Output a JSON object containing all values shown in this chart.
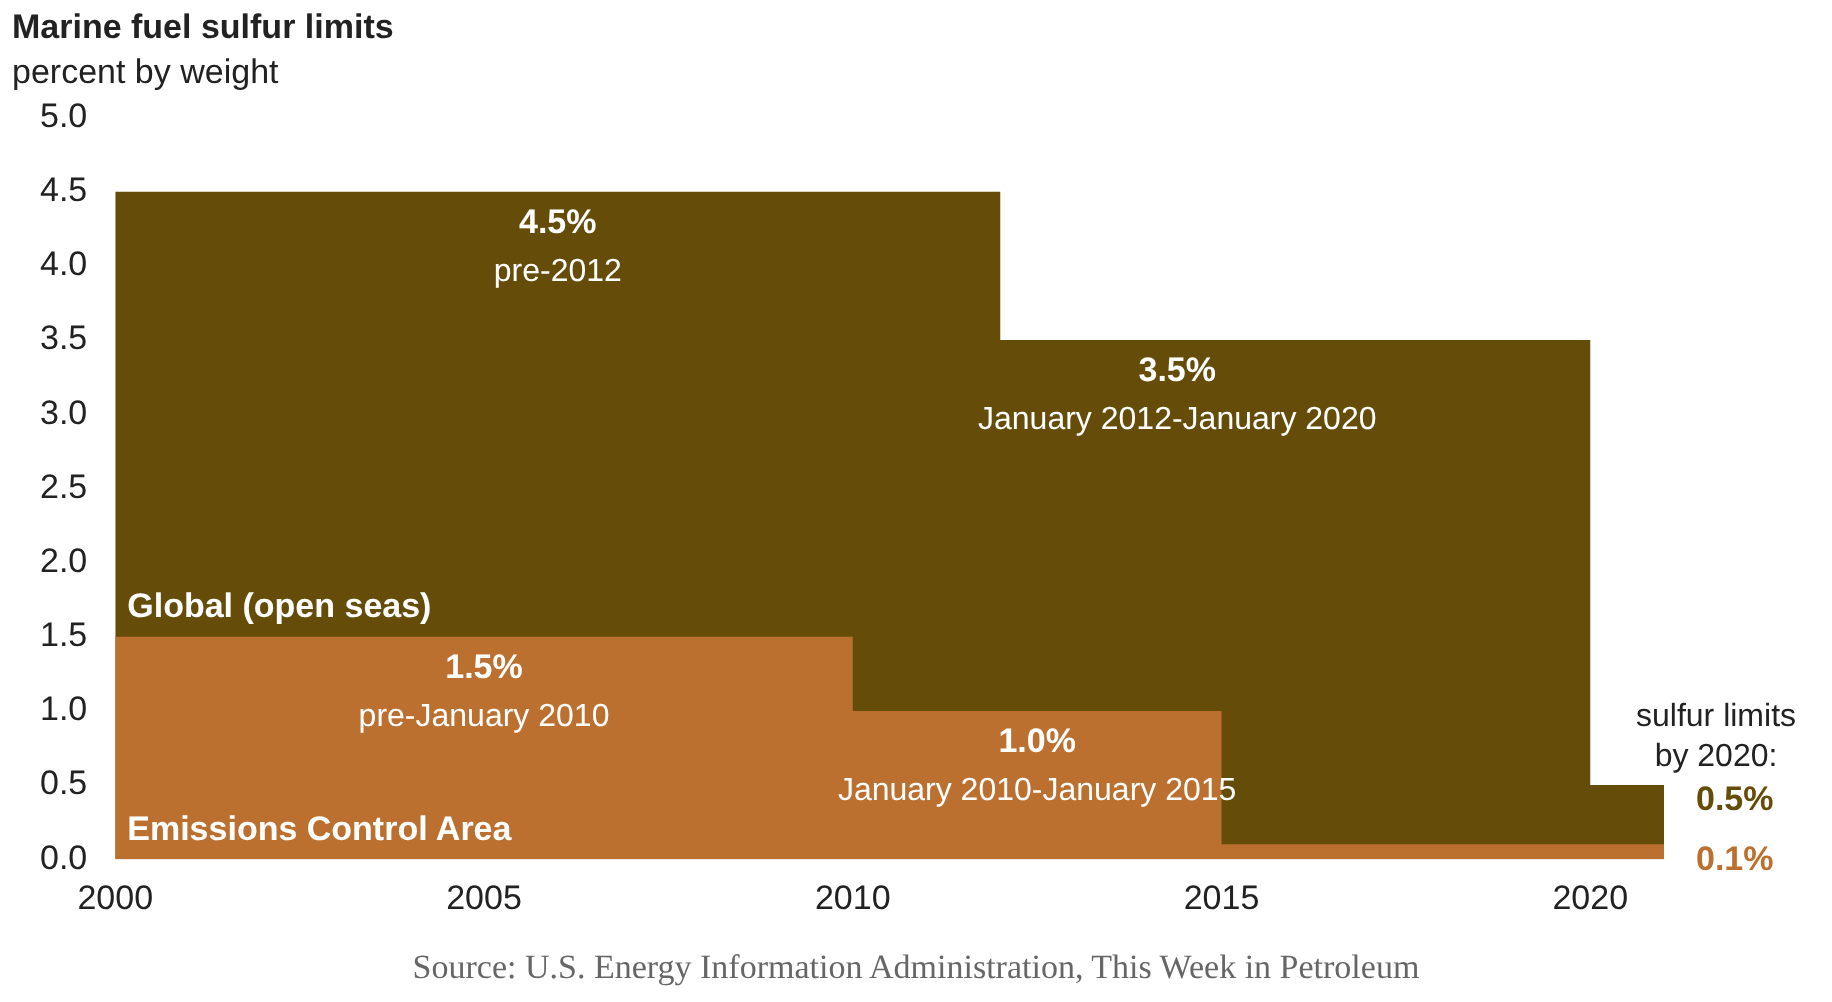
{
  "chart_data": {
    "type": "area",
    "title": "Marine fuel sulfur limits",
    "subtitle": "percent by weight",
    "xlim": [
      2000,
      2021
    ],
    "xticks": [
      2000,
      2005,
      2010,
      2015,
      2020
    ],
    "ylim": [
      0,
      5
    ],
    "yticks": [
      {
        "value": 0,
        "label": "0.0"
      },
      {
        "value": 0.5,
        "label": "0.5"
      },
      {
        "value": 1,
        "label": "1.0"
      },
      {
        "value": 1.5,
        "label": "1.5"
      },
      {
        "value": 2,
        "label": "2.0"
      },
      {
        "value": 2.5,
        "label": "2.5"
      },
      {
        "value": 3,
        "label": "3.0"
      },
      {
        "value": 3.5,
        "label": "3.5"
      },
      {
        "value": 4,
        "label": "4.0"
      },
      {
        "value": 4.5,
        "label": "4.5"
      },
      {
        "value": 5,
        "label": "5.0"
      }
    ],
    "grid": false,
    "legend": false,
    "series": [
      {
        "name": "Global (open seas)",
        "color": "#654d09",
        "x": [
          2000,
          2012,
          2012,
          2020,
          2020,
          2021
        ],
        "values": [
          4.5,
          4.5,
          3.5,
          3.5,
          0.5,
          0.5
        ],
        "value_labels": [
          null,
          null,
          null,
          null,
          null,
          "0.5%"
        ]
      },
      {
        "name": "Emissions Control Area",
        "color": "#bc702f",
        "x": [
          2000,
          2010,
          2010,
          2015,
          2015,
          2021
        ],
        "values": [
          1.5,
          1.5,
          1.0,
          1.0,
          0.1,
          0.1
        ],
        "value_labels": [
          null,
          null,
          null,
          null,
          null,
          "0.1%"
        ]
      }
    ],
    "annotations": [
      {
        "text": "4.5%",
        "x": 2006,
        "y": 4.5
      },
      {
        "text": "pre-2012",
        "x": 2006,
        "y": 4.5
      },
      {
        "text": "3.5%",
        "x": 2014.4,
        "y": 3.5
      },
      {
        "text": "January 2012-January 2020",
        "x": 2014.4,
        "y": 3.5
      },
      {
        "text": "1.5%",
        "x": 2005,
        "y": 1.5
      },
      {
        "text": "pre-January 2010",
        "x": 2005,
        "y": 1.5
      },
      {
        "text": "1.0%",
        "x": 2012.5,
        "y": 1.0
      },
      {
        "text": "January 2010-January 2015",
        "x": 2012.5,
        "y": 1.0
      },
      {
        "text": "sulfur limits",
        "x": 2021,
        "y": 0.5
      },
      {
        "text": "by 2020:",
        "x": 2021,
        "y": 0.5
      },
      "Source: U.S. Energy Information Administration, This Week in Petroleum"
    ]
  }
}
